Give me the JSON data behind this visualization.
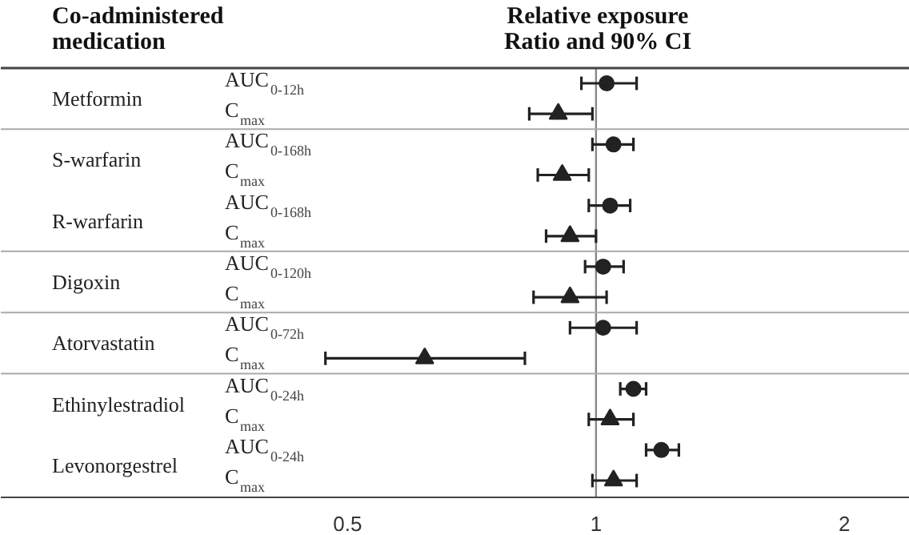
{
  "chart_data": {
    "type": "scatter",
    "orientation": "horizontal",
    "title": "Relative exposure\nRatio and 90% CI",
    "ylabel": "Co-administered\nmedication",
    "categories": [
      "AUC$_{0-12h}$",
      "C$_{max}$",
      "AUC$_{0-168h}$",
      "C$_{max}$",
      "AUC$_{0-168h}$",
      "C$_{max}$",
      "AUC$_{0-120h}$",
      "C$_{max}$",
      "AUC$_{0-72h}$",
      "C$_{max}$",
      "AUC$_{0-24h}$",
      "C$_{max}$",
      "AUC$_{0-24h}$",
      "C$_{max}$"
    ],
    "annotations": [
      "Metformin",
      "S-warfarin",
      "R-warfarin",
      "Digoxin",
      "Atorvastatin",
      "Ethinylestradiol",
      "Levonorgestrel"
    ],
    "series": [
      {
        "color": "#222222",
        "marker": "circle",
        "values": [
          1.03,
          null,
          1.05,
          null,
          1.04,
          null,
          1.02,
          null,
          1.02,
          null,
          1.11,
          null,
          1.2,
          null
        ],
        "errors": [
          [
            0.96,
            1.12
          ],
          null,
          [
            0.99,
            1.11
          ],
          null,
          [
            0.98,
            1.1
          ],
          null,
          [
            0.97,
            1.08
          ],
          null,
          [
            0.93,
            1.12
          ],
          null,
          [
            1.07,
            1.15
          ],
          null,
          [
            1.15,
            1.26
          ],
          null
        ]
      },
      {
        "color": "#222222",
        "marker": "triangle",
        "values": [
          null,
          0.9,
          null,
          0.91,
          null,
          0.93,
          null,
          0.93,
          null,
          0.62,
          null,
          1.04,
          null,
          1.05
        ],
        "errors": [
          null,
          [
            0.83,
            0.99
          ],
          null,
          [
            0.85,
            0.98
          ],
          null,
          [
            0.87,
            1.0
          ],
          null,
          [
            0.84,
            1.03
          ],
          null,
          [
            0.47,
            0.82
          ],
          null,
          [
            0.98,
            1.11
          ],
          null,
          [
            0.99,
            1.12
          ]
        ]
      }
    ],
    "log": "x",
    "xlim": [
      0.19,
      2.4
    ],
    "xticks": [
      0.5,
      1,
      2
    ],
    "grid": false,
    "ref_lines": [
      {
        "axis": "x",
        "value": 1,
        "color": "#888888"
      }
    ]
  }
}
